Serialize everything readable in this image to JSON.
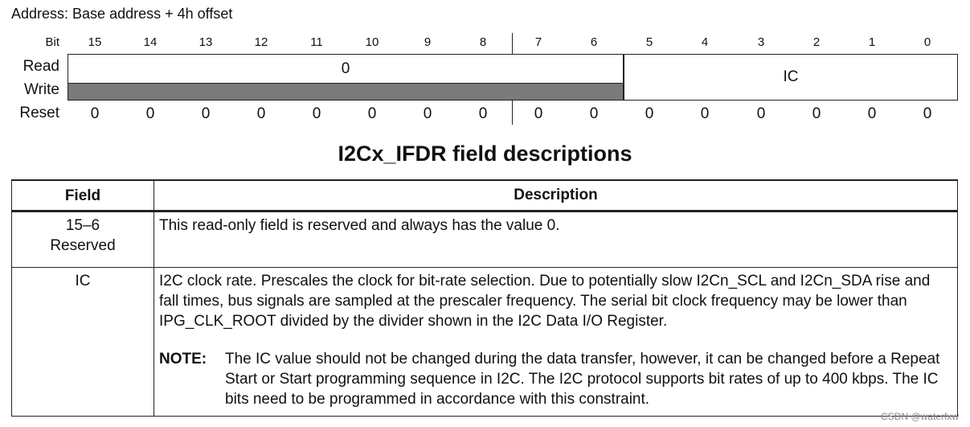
{
  "address": "Address: Base address + 4h offset",
  "bit_label": "Bit",
  "bits": [
    "15",
    "14",
    "13",
    "12",
    "11",
    "10",
    "9",
    "8",
    "7",
    "6",
    "5",
    "4",
    "3",
    "2",
    "1",
    "0"
  ],
  "row_labels": {
    "read": "Read",
    "write": "Write",
    "reset": "Reset"
  },
  "read_field_value": "0",
  "ic_field_name": "IC",
  "reset_values": [
    "0",
    "0",
    "0",
    "0",
    "0",
    "0",
    "0",
    "0",
    "0",
    "0",
    "0",
    "0",
    "0",
    "0",
    "0",
    "0"
  ],
  "table_title": "I2Cx_IFDR field descriptions",
  "table": {
    "headers": {
      "field": "Field",
      "description": "Description"
    },
    "rows": [
      {
        "field_line1": "15–6",
        "field_line2": "Reserved",
        "description": "This read-only field is reserved and always has the value 0."
      },
      {
        "field_line1": "IC",
        "description": "I2C clock rate. Prescales the clock for bit-rate selection. Due to potentially slow I2Cn_SCL and I2Cn_SDA rise and fall times, bus signals are sampled at the prescaler frequency. The serial bit clock frequency may be lower than IPG_CLK_ROOT divided by the divider shown in the I2C Data I/O Register.",
        "note_label": "NOTE:",
        "note_text": "The IC value should not be changed during the data transfer, however, it can be changed before a Repeat Start or Start programming sequence in I2C. The I2C protocol supports bit rates of up to 400 kbps. The IC bits need to be programmed in accordance with this constraint."
      }
    ]
  },
  "watermark": "CSDN @waterfxw"
}
